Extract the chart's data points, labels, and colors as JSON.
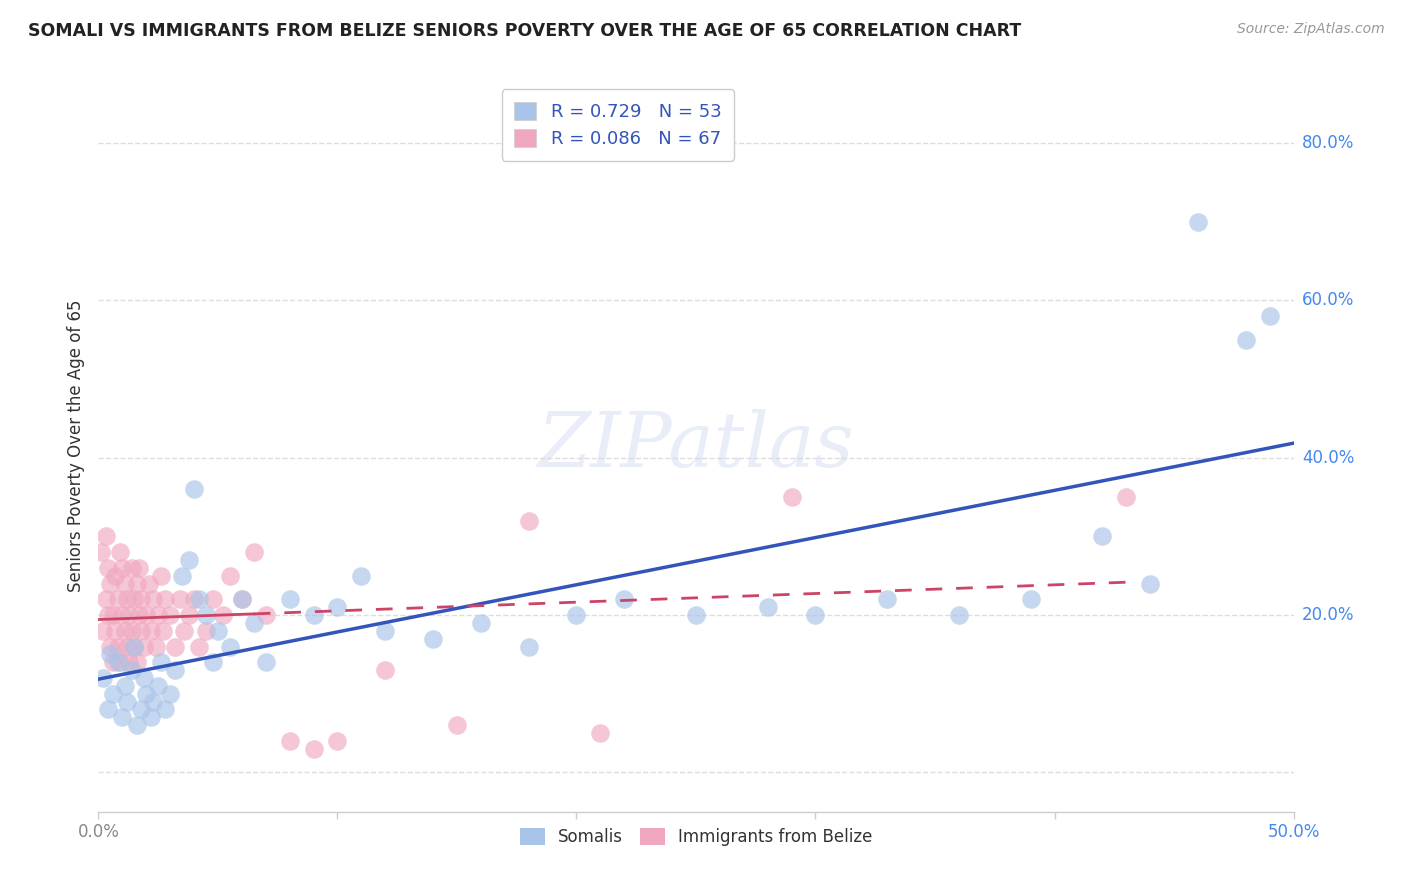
{
  "title": "SOMALI VS IMMIGRANTS FROM BELIZE SENIORS POVERTY OVER THE AGE OF 65 CORRELATION CHART",
  "source": "Source: ZipAtlas.com",
  "ylabel": "Seniors Poverty Over the Age of 65",
  "watermark": "ZIPatlas",
  "somali_R": 0.729,
  "somali_N": 53,
  "belize_R": 0.086,
  "belize_N": 67,
  "somali_color": "#a8c4e8",
  "belize_color": "#f0a8c0",
  "somali_line_color": "#3355bb",
  "belize_line_color": "#cc4466",
  "xlim": [
    0.0,
    0.5
  ],
  "ylim": [
    -0.05,
    0.88
  ],
  "yticks": [
    0.0,
    0.2,
    0.4,
    0.6,
    0.8
  ],
  "xticks": [
    0.0,
    0.1,
    0.2,
    0.3,
    0.4,
    0.5
  ],
  "somali_x": [
    0.002,
    0.004,
    0.005,
    0.006,
    0.008,
    0.01,
    0.011,
    0.012,
    0.014,
    0.015,
    0.016,
    0.018,
    0.019,
    0.02,
    0.022,
    0.023,
    0.025,
    0.026,
    0.028,
    0.03,
    0.032,
    0.035,
    0.038,
    0.04,
    0.042,
    0.045,
    0.048,
    0.05,
    0.055,
    0.06,
    0.065,
    0.07,
    0.08,
    0.09,
    0.1,
    0.11,
    0.12,
    0.14,
    0.16,
    0.18,
    0.2,
    0.22,
    0.25,
    0.28,
    0.3,
    0.33,
    0.36,
    0.39,
    0.42,
    0.44,
    0.46,
    0.48,
    0.49
  ],
  "somali_y": [
    0.12,
    0.08,
    0.15,
    0.1,
    0.14,
    0.07,
    0.11,
    0.09,
    0.13,
    0.16,
    0.06,
    0.08,
    0.12,
    0.1,
    0.07,
    0.09,
    0.11,
    0.14,
    0.08,
    0.1,
    0.13,
    0.25,
    0.27,
    0.36,
    0.22,
    0.2,
    0.14,
    0.18,
    0.16,
    0.22,
    0.19,
    0.14,
    0.22,
    0.2,
    0.21,
    0.25,
    0.18,
    0.17,
    0.19,
    0.16,
    0.2,
    0.22,
    0.2,
    0.21,
    0.2,
    0.22,
    0.2,
    0.22,
    0.3,
    0.24,
    0.7,
    0.55,
    0.58
  ],
  "belize_x": [
    0.001,
    0.002,
    0.003,
    0.003,
    0.004,
    0.004,
    0.005,
    0.005,
    0.006,
    0.006,
    0.007,
    0.007,
    0.008,
    0.008,
    0.009,
    0.009,
    0.01,
    0.01,
    0.011,
    0.011,
    0.012,
    0.012,
    0.013,
    0.013,
    0.014,
    0.014,
    0.015,
    0.015,
    0.016,
    0.016,
    0.017,
    0.017,
    0.018,
    0.018,
    0.019,
    0.02,
    0.021,
    0.022,
    0.023,
    0.024,
    0.025,
    0.026,
    0.027,
    0.028,
    0.03,
    0.032,
    0.034,
    0.036,
    0.038,
    0.04,
    0.042,
    0.045,
    0.048,
    0.052,
    0.055,
    0.06,
    0.065,
    0.07,
    0.08,
    0.09,
    0.1,
    0.12,
    0.15,
    0.18,
    0.21,
    0.29,
    0.43
  ],
  "belize_y": [
    0.28,
    0.18,
    0.22,
    0.3,
    0.2,
    0.26,
    0.16,
    0.24,
    0.14,
    0.2,
    0.25,
    0.18,
    0.22,
    0.16,
    0.28,
    0.14,
    0.2,
    0.26,
    0.18,
    0.24,
    0.16,
    0.22,
    0.14,
    0.2,
    0.26,
    0.18,
    0.22,
    0.16,
    0.24,
    0.14,
    0.2,
    0.26,
    0.18,
    0.22,
    0.16,
    0.2,
    0.24,
    0.18,
    0.22,
    0.16,
    0.2,
    0.25,
    0.18,
    0.22,
    0.2,
    0.16,
    0.22,
    0.18,
    0.2,
    0.22,
    0.16,
    0.18,
    0.22,
    0.2,
    0.25,
    0.22,
    0.28,
    0.2,
    0.04,
    0.03,
    0.04,
    0.13,
    0.06,
    0.32,
    0.05,
    0.35,
    0.35
  ],
  "grid_color": "#dddddd",
  "background_color": "#ffffff"
}
